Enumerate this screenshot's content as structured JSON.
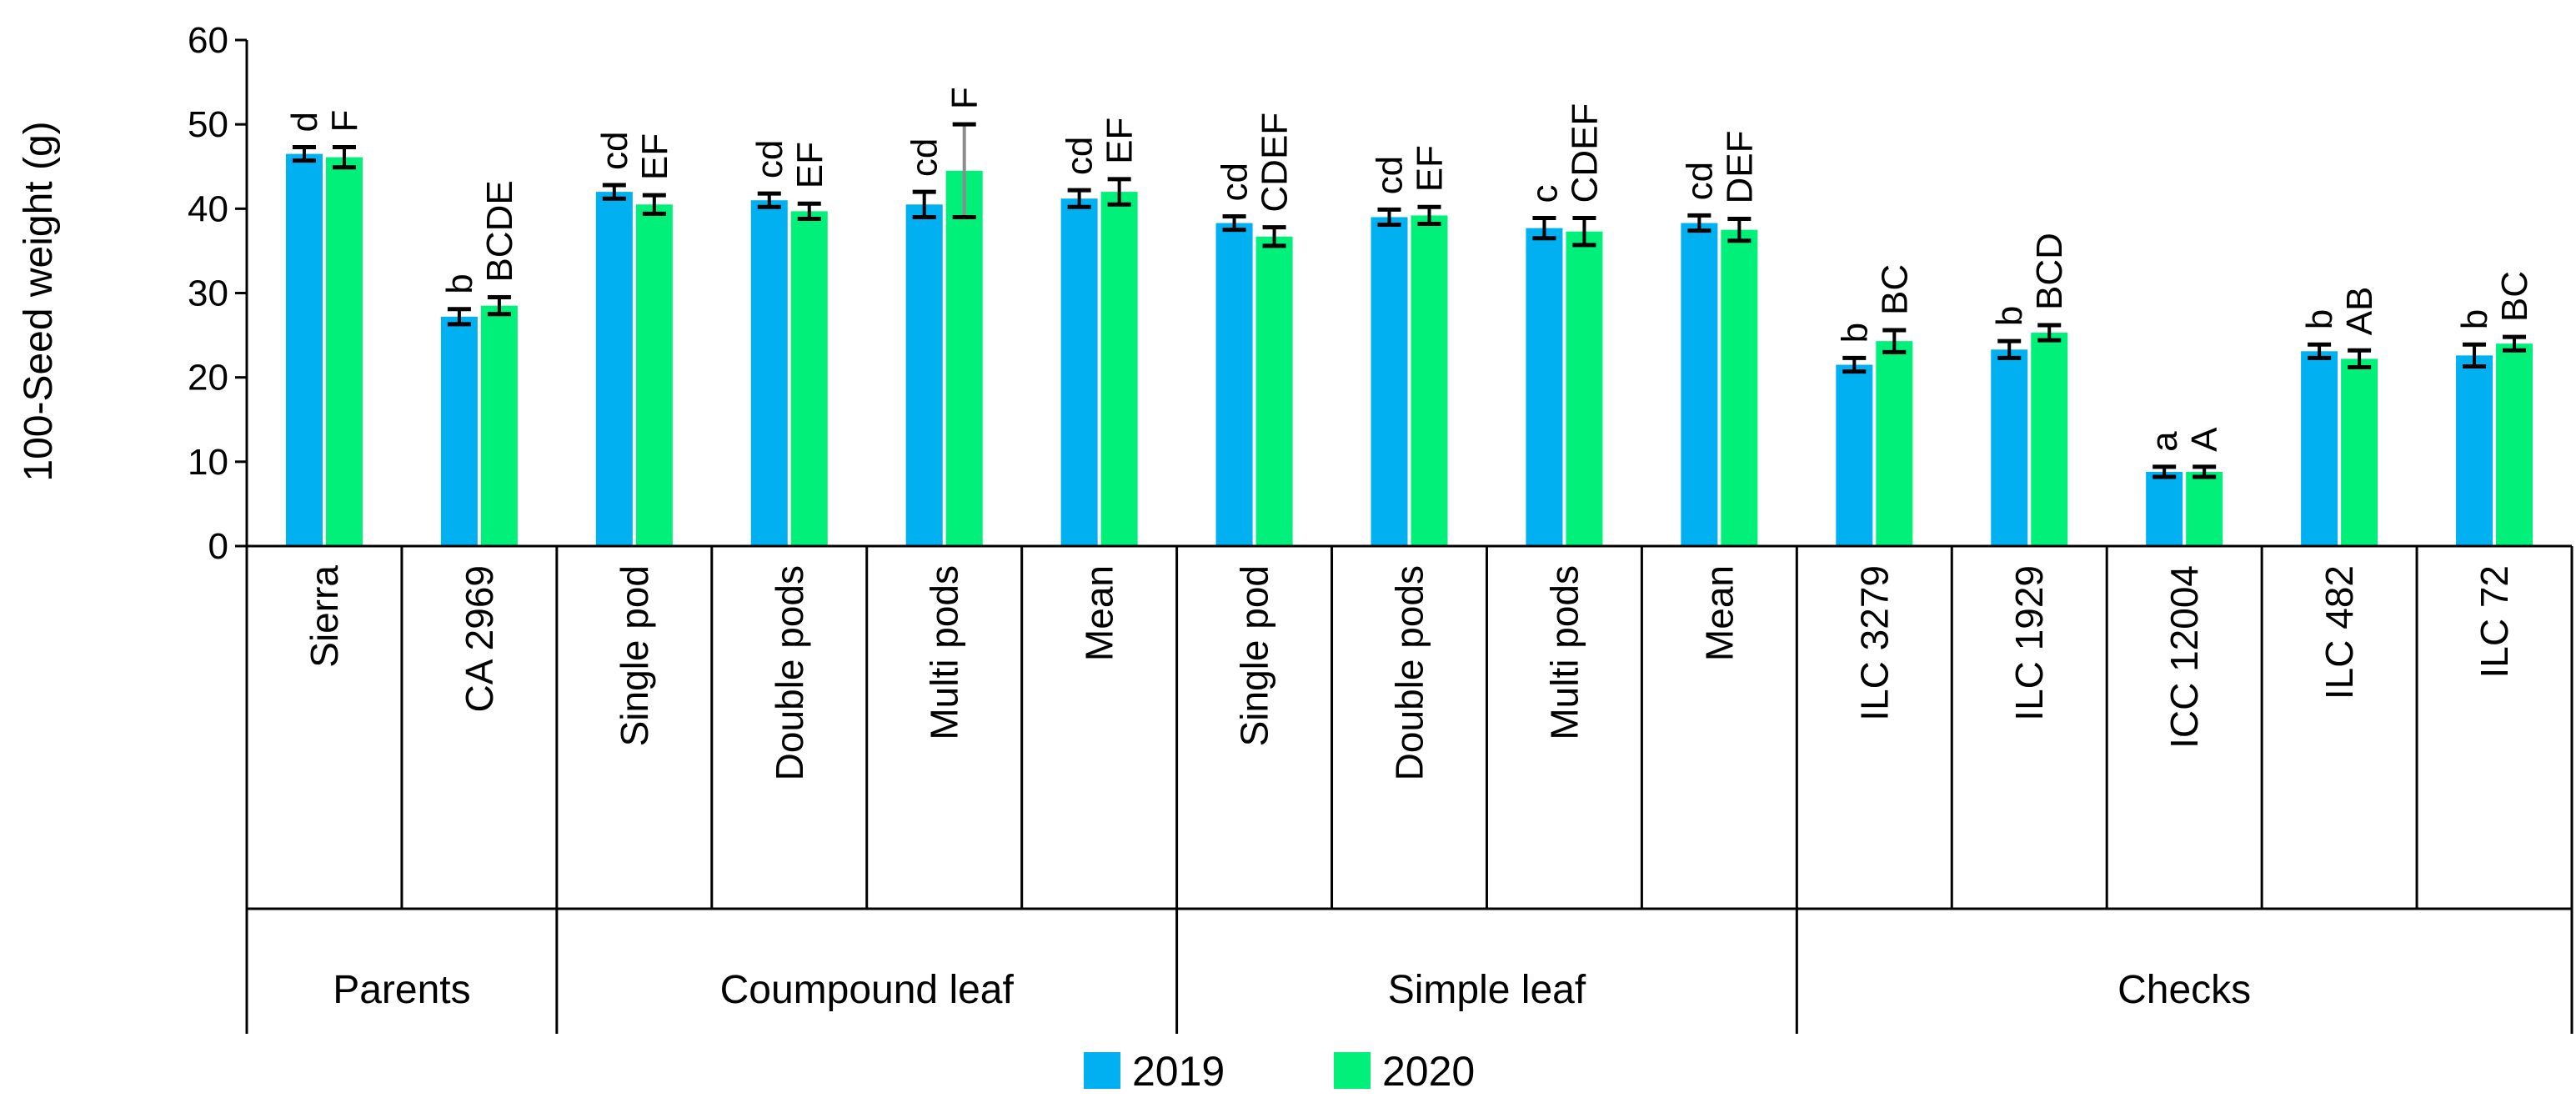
{
  "chart_data": {
    "type": "bar",
    "title": "",
    "xlabel": "",
    "ylabel": "100-Seed weight (g)",
    "ylim": [
      0,
      60
    ],
    "yticks": [
      0,
      10,
      20,
      30,
      40,
      50,
      60
    ],
    "grid": false,
    "legend_position": "bottom-center",
    "categories": [
      "Sierra",
      "CA 2969",
      "Single pod",
      "Double pods",
      "Multi pods",
      "Mean",
      "Single pod",
      "Double pods",
      "Multi pods",
      "Mean",
      "ILC 3279",
      "ILC 1929",
      "ICC 12004",
      "ILC 482",
      "ILC 72"
    ],
    "groups": [
      {
        "label": "Parents",
        "count": 2
      },
      {
        "label": "Coumpound leaf",
        "count": 4
      },
      {
        "label": "Simple leaf",
        "count": 4
      },
      {
        "label": "Checks",
        "count": 5
      }
    ],
    "series": [
      {
        "name": "2019",
        "color": "#00B0F0",
        "values": [
          46.5,
          27.2,
          42.0,
          41.0,
          40.5,
          41.2,
          38.3,
          39.0,
          37.7,
          38.3,
          21.5,
          23.3,
          8.8,
          23.1,
          22.6
        ],
        "errors": [
          0.8,
          0.9,
          0.8,
          0.8,
          1.5,
          1.0,
          0.8,
          0.9,
          1.2,
          0.9,
          0.8,
          1.0,
          0.6,
          0.8,
          1.3
        ],
        "letters": [
          "d",
          "b",
          "cd",
          "cd",
          "cd",
          "cd",
          "cd",
          "cd",
          "c",
          "cd",
          "b",
          "b",
          "a",
          "b",
          "b"
        ]
      },
      {
        "name": "2020",
        "color": "#00F07A",
        "values": [
          46.1,
          28.5,
          40.5,
          39.7,
          44.5,
          42.0,
          36.7,
          39.2,
          37.3,
          37.5,
          24.3,
          25.3,
          8.8,
          22.2,
          24.0
        ],
        "errors": [
          1.2,
          1.0,
          1.1,
          0.9,
          5.5,
          1.5,
          1.1,
          1.0,
          1.6,
          1.3,
          1.3,
          0.9,
          0.6,
          1.0,
          0.8
        ],
        "letters": [
          "F",
          "BCDE",
          "EF",
          "EF",
          "F",
          "EF",
          "CDEF",
          "EF",
          "CDEF",
          "DEF",
          "BC",
          "BCD",
          "A",
          "AB",
          "BC"
        ]
      }
    ]
  }
}
